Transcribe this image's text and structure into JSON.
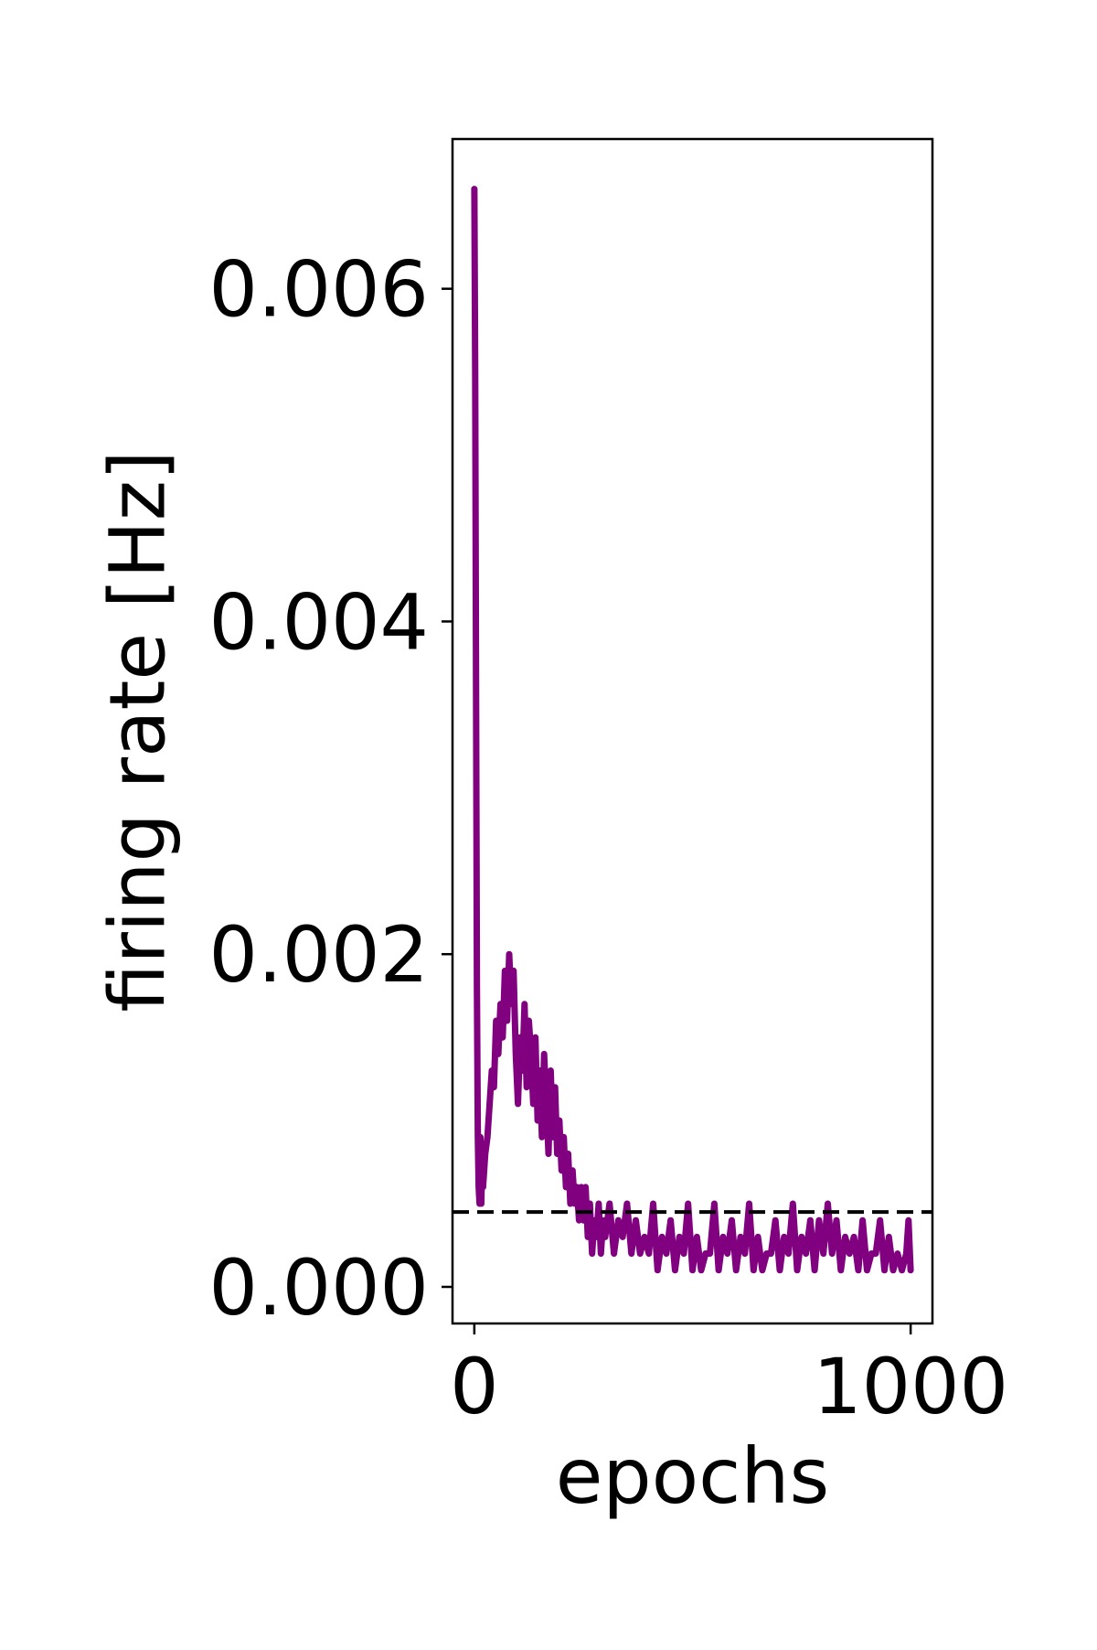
{
  "chart_data": {
    "type": "line",
    "title": "",
    "xlabel": "epochs",
    "ylabel": "firing rate [Hz]",
    "xlim": [
      -50,
      1050
    ],
    "ylim": [
      -0.00022,
      0.0069
    ],
    "xticks": [
      0,
      1000
    ],
    "xtick_labels": [
      "0",
      "1000"
    ],
    "yticks": [
      0.0,
      0.002,
      0.004,
      0.006
    ],
    "ytick_labels": [
      "0.000",
      "0.002",
      "0.004",
      "0.006"
    ],
    "grid": false,
    "legend": "none",
    "series": [
      {
        "color": "#800080",
        "x": [
          0,
          2,
          4,
          6,
          8,
          10,
          12,
          14,
          16,
          18,
          20,
          25,
          30,
          35,
          40,
          45,
          50,
          55,
          60,
          65,
          70,
          75,
          80,
          85,
          90,
          95,
          100,
          105,
          110,
          115,
          120,
          125,
          130,
          135,
          140,
          145,
          150,
          155,
          160,
          165,
          170,
          175,
          180,
          185,
          190,
          195,
          200,
          205,
          210,
          215,
          220,
          225,
          230,
          235,
          240,
          245,
          250,
          255,
          260,
          265,
          270,
          275,
          280,
          285,
          290,
          295,
          300,
          310,
          320,
          330,
          340,
          350,
          360,
          370,
          380,
          390,
          400,
          410,
          420,
          430,
          440,
          450,
          460,
          470,
          480,
          490,
          500,
          510,
          520,
          530,
          540,
          550,
          560,
          570,
          580,
          590,
          600,
          610,
          620,
          630,
          640,
          650,
          660,
          670,
          680,
          690,
          700,
          710,
          720,
          730,
          740,
          750,
          760,
          770,
          780,
          790,
          800,
          810,
          820,
          830,
          840,
          850,
          860,
          870,
          880,
          890,
          900,
          910,
          920,
          930,
          940,
          950,
          960,
          970,
          980,
          990,
          995,
          1000
        ],
        "y": [
          0.0066,
          0.0055,
          0.0035,
          0.0018,
          0.0009,
          0.0006,
          0.0005,
          0.0009,
          0.0005,
          0.0008,
          0.0006,
          0.0008,
          0.0009,
          0.0011,
          0.0013,
          0.0012,
          0.0016,
          0.0014,
          0.0017,
          0.0015,
          0.0019,
          0.0016,
          0.002,
          0.0017,
          0.0019,
          0.0014,
          0.0011,
          0.0015,
          0.0013,
          0.0017,
          0.0012,
          0.0016,
          0.0014,
          0.0011,
          0.0015,
          0.001,
          0.0013,
          0.0009,
          0.0014,
          0.0011,
          0.0008,
          0.0013,
          0.0009,
          0.0012,
          0.0008,
          0.001,
          0.0007,
          0.0009,
          0.0006,
          0.0008,
          0.0005,
          0.0007,
          0.0005,
          0.0006,
          0.0004,
          0.0006,
          0.0004,
          0.0006,
          0.0003,
          0.0005,
          0.0002,
          0.0004,
          0.0003,
          0.0005,
          0.0002,
          0.0004,
          0.0003,
          0.0005,
          0.0002,
          0.0004,
          0.0003,
          0.0005,
          0.0002,
          0.0004,
          0.0002,
          0.0003,
          0.0002,
          0.0005,
          0.0001,
          0.0003,
          0.0002,
          0.0004,
          0.0001,
          0.0003,
          0.0002,
          0.0005,
          0.0001,
          0.0003,
          0.0001,
          0.0002,
          0.0002,
          0.0005,
          0.0001,
          0.0003,
          0.0002,
          0.0004,
          0.0001,
          0.0003,
          0.0002,
          0.0005,
          0.0001,
          0.0003,
          0.0001,
          0.0002,
          0.0002,
          0.0004,
          0.0001,
          0.0003,
          0.0002,
          0.0005,
          0.0001,
          0.0003,
          0.0002,
          0.0004,
          0.0001,
          0.0004,
          0.0002,
          0.0005,
          0.0002,
          0.0004,
          0.0001,
          0.0003,
          0.0002,
          0.0003,
          0.0001,
          0.0004,
          0.0001,
          0.0002,
          0.0002,
          0.0004,
          0.0001,
          0.0003,
          0.0001,
          0.0002,
          0.0001,
          0.0002,
          0.0004,
          0.0001
        ]
      }
    ],
    "reference_lines": [
      {
        "orientation": "horizontal",
        "y": 0.00045,
        "style": "dashed",
        "color": "#000000"
      }
    ]
  }
}
